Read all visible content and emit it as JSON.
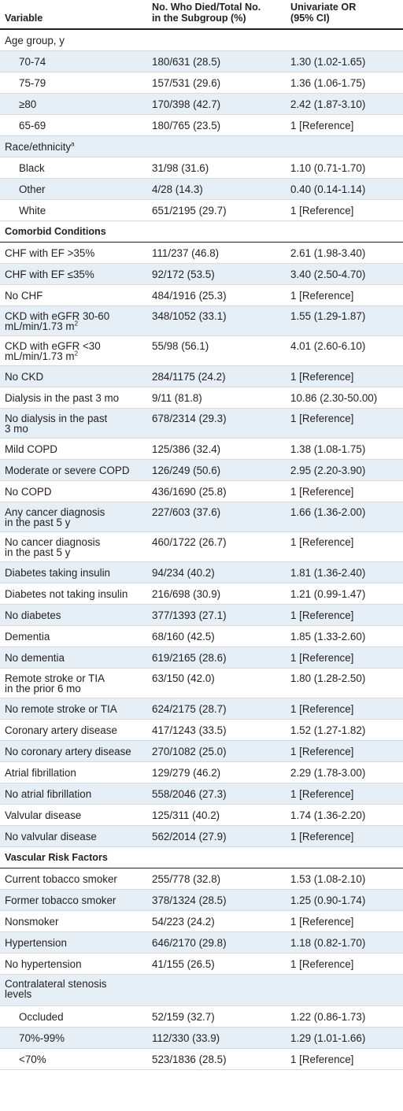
{
  "table": {
    "headers": [
      "Variable",
      "No. Who Died/Total No.\nin the Subgroup (%)",
      "Univariate OR\n(95% CI)"
    ],
    "rows": [
      {
        "kind": "group",
        "label": "Age group, y"
      },
      {
        "kind": "data",
        "indent": true,
        "label": "70-74",
        "died": "180/631 (28.5)",
        "or": "1.30 (1.02-1.65)"
      },
      {
        "kind": "data",
        "indent": true,
        "label": "75-79",
        "died": "157/531 (29.6)",
        "or": "1.36 (1.06-1.75)"
      },
      {
        "kind": "data",
        "indent": true,
        "label": "≥80",
        "died": "170/398 (42.7)",
        "or": "2.42 (1.87-3.10)"
      },
      {
        "kind": "data",
        "indent": true,
        "label": "65-69",
        "died": "180/765 (23.5)",
        "or": "1 [Reference]"
      },
      {
        "kind": "group",
        "label": "Race/ethnicity",
        "sup": "a"
      },
      {
        "kind": "data",
        "indent": true,
        "label": "Black",
        "died": "31/98 (31.6)",
        "or": "1.10 (0.71-1.70)"
      },
      {
        "kind": "data",
        "indent": true,
        "label": "Other",
        "died": "4/28 (14.3)",
        "or": "0.40 (0.14-1.14)"
      },
      {
        "kind": "data",
        "indent": true,
        "label": "White",
        "died": "651/2195 (29.7)",
        "or": "1 [Reference]"
      },
      {
        "kind": "section",
        "label": "Comorbid Conditions"
      },
      {
        "kind": "data",
        "label": "CHF with EF >35%",
        "died": "111/237 (46.8)",
        "or": "2.61 (1.98-3.40)"
      },
      {
        "kind": "data",
        "label": "CHF with EF ≤35%",
        "died": "92/172 (53.5)",
        "or": "3.40 (2.50-4.70)"
      },
      {
        "kind": "data",
        "label": "No CHF",
        "died": "484/1916 (25.3)",
        "or": "1 [Reference]"
      },
      {
        "kind": "data",
        "tall": true,
        "label": "CKD with eGFR 30-60\nmL/min/1.73 m",
        "sup": "2",
        "died": "348/1052 (33.1)",
        "or": "1.55 (1.29-1.87)"
      },
      {
        "kind": "data",
        "tall": true,
        "label": "CKD with eGFR <30\nmL/min/1.73 m",
        "sup": "2",
        "died": "55/98 (56.1)",
        "or": "4.01 (2.60-6.10)"
      },
      {
        "kind": "data",
        "label": "No CKD",
        "died": "284/1175 (24.2)",
        "or": "1 [Reference]"
      },
      {
        "kind": "data",
        "label": "Dialysis in the past 3 mo",
        "died": "9/11 (81.8)",
        "or": "10.86 (2.30-50.00)"
      },
      {
        "kind": "data",
        "tall": true,
        "label": "No dialysis in the past\n3 mo",
        "died": "678/2314 (29.3)",
        "or": "1 [Reference]"
      },
      {
        "kind": "data",
        "label": "Mild COPD",
        "died": "125/386 (32.4)",
        "or": "1.38 (1.08-1.75)"
      },
      {
        "kind": "data",
        "label": "Moderate or severe COPD",
        "died": "126/249 (50.6)",
        "or": "2.95 (2.20-3.90)"
      },
      {
        "kind": "data",
        "label": "No COPD",
        "died": "436/1690 (25.8)",
        "or": "1 [Reference]"
      },
      {
        "kind": "data",
        "tall": true,
        "label": "Any cancer diagnosis\nin the past 5 y",
        "died": "227/603 (37.6)",
        "or": "1.66 (1.36-2.00)"
      },
      {
        "kind": "data",
        "tall": true,
        "label": "No cancer diagnosis\nin the past 5 y",
        "died": "460/1722 (26.7)",
        "or": "1 [Reference]"
      },
      {
        "kind": "data",
        "label": "Diabetes taking insulin",
        "died": "94/234 (40.2)",
        "or": "1.81 (1.36-2.40)"
      },
      {
        "kind": "data",
        "label": "Diabetes not taking insulin",
        "died": "216/698 (30.9)",
        "or": "1.21 (0.99-1.47)"
      },
      {
        "kind": "data",
        "label": "No diabetes",
        "died": "377/1393 (27.1)",
        "or": "1 [Reference]"
      },
      {
        "kind": "data",
        "label": "Dementia",
        "died": "68/160 (42.5)",
        "or": "1.85 (1.33-2.60)"
      },
      {
        "kind": "data",
        "label": "No dementia",
        "died": "619/2165 (28.6)",
        "or": "1 [Reference]"
      },
      {
        "kind": "data",
        "tall": true,
        "label": "Remote stroke or TIA\nin the prior 6 mo",
        "died": "63/150 (42.0)",
        "or": "1.80 (1.28-2.50)"
      },
      {
        "kind": "data",
        "label": "No remote stroke or TIA",
        "died": "624/2175 (28.7)",
        "or": "1 [Reference]"
      },
      {
        "kind": "data",
        "label": "Coronary artery disease",
        "died": "417/1243 (33.5)",
        "or": "1.52 (1.27-1.82)"
      },
      {
        "kind": "data",
        "label": "No coronary artery disease",
        "died": "270/1082 (25.0)",
        "or": "1 [Reference]"
      },
      {
        "kind": "data",
        "label": "Atrial fibrillation",
        "died": "129/279 (46.2)",
        "or": "2.29 (1.78-3.00)"
      },
      {
        "kind": "data",
        "label": "No atrial fibrillation",
        "died": "558/2046 (27.3)",
        "or": "1 [Reference]"
      },
      {
        "kind": "data",
        "label": "Valvular disease",
        "died": "125/311 (40.2)",
        "or": "1.74 (1.36-2.20)"
      },
      {
        "kind": "data",
        "label": "No valvular disease",
        "died": "562/2014 (27.9)",
        "or": "1 [Reference]"
      },
      {
        "kind": "section",
        "label": "Vascular Risk Factors"
      },
      {
        "kind": "data",
        "label": "Current tobacco smoker",
        "died": "255/778 (32.8)",
        "or": "1.53 (1.08-2.10)"
      },
      {
        "kind": "data",
        "label": "Former tobacco smoker",
        "died": "378/1324 (28.5)",
        "or": "1.25 (0.90-1.74)"
      },
      {
        "kind": "data",
        "label": "Nonsmoker",
        "died": "54/223 (24.2)",
        "or": "1 [Reference]"
      },
      {
        "kind": "data",
        "label": "Hypertension",
        "died": "646/2170 (29.8)",
        "or": "1.18 (0.82-1.70)"
      },
      {
        "kind": "data",
        "label": "No hypertension",
        "died": "41/155 (26.5)",
        "or": "1 [Reference]"
      },
      {
        "kind": "group",
        "stall": true,
        "label": "Contralateral stenosis\nlevels"
      },
      {
        "kind": "data",
        "indent": true,
        "label": "Occluded",
        "died": "52/159 (32.7)",
        "or": "1.22 (0.86-1.73)"
      },
      {
        "kind": "data",
        "indent": true,
        "label": "70%-99%",
        "died": "112/330 (33.9)",
        "or": "1.29 (1.01-1.66)"
      },
      {
        "kind": "data",
        "indent": true,
        "label": "<70%",
        "died": "523/1836 (28.5)",
        "or": "1 [Reference]"
      }
    ]
  }
}
